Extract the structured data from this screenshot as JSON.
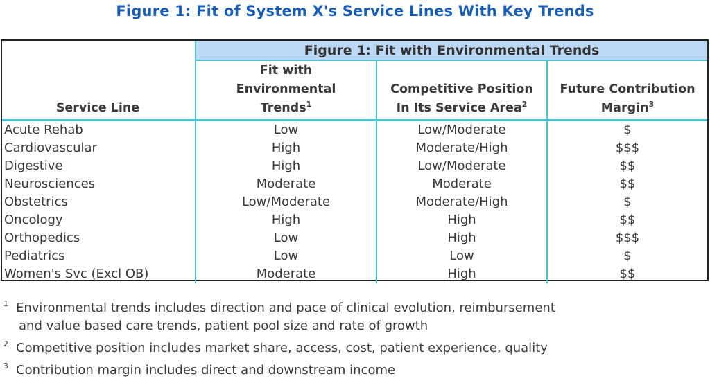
{
  "title": "Figure 1: Fit of System X's Service Lines With Key Trends",
  "table": {
    "group_header": "Figure 1: Fit with Environmental Trends",
    "headers": {
      "service_line": "Service Line",
      "fit_line1": "Fit with",
      "fit_line2": "Environmental",
      "fit_line3": "Trends",
      "fit_sup": "1",
      "comp_line1": "Competitive Position",
      "comp_line2": "In Its Service Area",
      "comp_sup": "2",
      "future_line1": "Future Contribution",
      "future_line2": "Margin",
      "future_sup": "3"
    },
    "rows": [
      {
        "service": "Acute Rehab",
        "fit": "Low",
        "position": "Low/Moderate",
        "margin": "$"
      },
      {
        "service": "Cardiovascular",
        "fit": "High",
        "position": "Moderate/High",
        "margin": "$$$"
      },
      {
        "service": "Digestive",
        "fit": "High",
        "position": "Low/Moderate",
        "margin": "$$"
      },
      {
        "service": "Neurosciences",
        "fit": "Moderate",
        "position": "Moderate",
        "margin": "$$"
      },
      {
        "service": "Obstetrics",
        "fit": "Low/Moderate",
        "position": "Moderate/High",
        "margin": "$"
      },
      {
        "service": "Oncology",
        "fit": "High",
        "position": "High",
        "margin": "$$"
      },
      {
        "service": "Orthopedics",
        "fit": "Low",
        "position": "High",
        "margin": "$$$"
      },
      {
        "service": "Pediatrics",
        "fit": "Low",
        "position": "Low",
        "margin": "$"
      },
      {
        "service": "Women's Svc (Excl OB)",
        "fit": "Moderate",
        "position": "High",
        "margin": "$$"
      }
    ]
  },
  "footnotes": [
    {
      "num": "1",
      "line1": "Environmental trends includes direction and pace of clinical evolution, reimbursement",
      "line2": "and value based care trends, patient pool size and rate of growth"
    },
    {
      "num": "2",
      "line1": "Competitive position includes market share, access, cost, patient experience, quality",
      "line2": ""
    },
    {
      "num": "3",
      "line1": "Contribution margin includes direct and downstream income",
      "line2": ""
    }
  ],
  "colors": {
    "title": "#1a5db5",
    "group_header_bg": "#bcd8f5",
    "rule": "#4ec3cf",
    "text": "#3a3a3a"
  }
}
